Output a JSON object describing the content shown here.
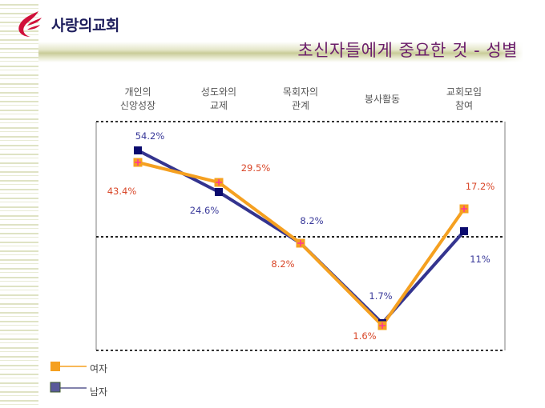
{
  "header": {
    "logo_text": "사랑의교회",
    "title": "초신자들에게 중요한 것 - 성별"
  },
  "chart_data": {
    "type": "line",
    "title": "초신자들에게 중요한 것 - 성별",
    "categories": [
      [
        "개인의",
        "신앙성장"
      ],
      [
        "성도와의",
        "교제"
      ],
      [
        "목회자의",
        "관계"
      ],
      [
        "봉사활동"
      ],
      [
        "교회모임",
        "참여"
      ]
    ],
    "series": [
      {
        "name": "여자",
        "values": [
          43.4,
          29.5,
          8.2,
          1.6,
          17.2
        ],
        "labels": [
          "43.4%",
          "29.5%",
          "8.2%",
          "1.6%",
          "17.2%"
        ],
        "color": "#f5a020",
        "label_color": "#d9482a",
        "marker_accent": "#ff3399"
      },
      {
        "name": "남자",
        "values": [
          54.2,
          24.6,
          8.2,
          1.7,
          11
        ],
        "labels": [
          "54.2%",
          "24.6%",
          "8.2%",
          "1.7%",
          "11%"
        ],
        "color": "#34348f",
        "label_color": "#3a3a9a",
        "marker_color": "#0a0a6e"
      }
    ],
    "legend": [
      "여자",
      "남자"
    ],
    "legend_position": "bottom-left",
    "grid": false,
    "unit": "%"
  }
}
